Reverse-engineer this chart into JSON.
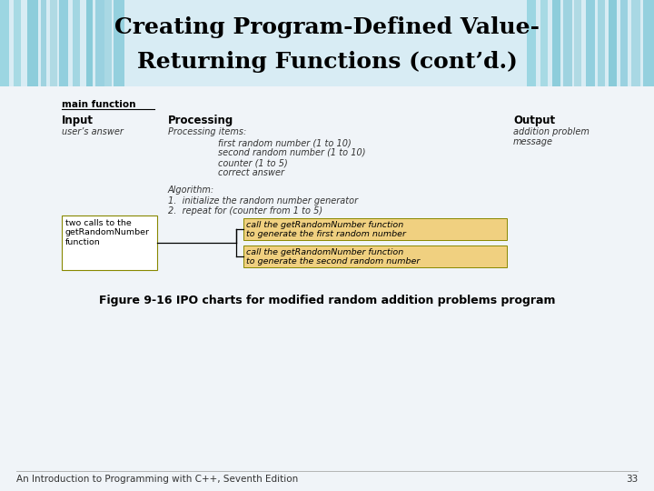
{
  "title_line1": "Creating Program-Defined Value-",
  "title_line2": "Returning Functions (cont’d.)",
  "title_fontsize": 18,
  "title_color": "#000000",
  "background_color": "#f0f4f8",
  "main_function_label": "main function",
  "input_label": "Input",
  "processing_label": "Processing",
  "output_label": "Output",
  "input_text": "user’s answer",
  "output_text1": "addition problem",
  "output_text2": "message",
  "processing_items_header": "Processing items:",
  "processing_items": [
    "first random number (1 to 10)",
    "second random number (1 to 10)",
    "counter (1 to 5)",
    "correct answer"
  ],
  "algorithm_header": "Algorithm:",
  "algorithm_items": [
    "1.  initialize the random number generator",
    "2.  repeat for (counter from 1 to 5)"
  ],
  "box_left_text": "two calls to the\ngetRandomNumber\nfunction",
  "highlight_box1_line1": "call the getRandomNumber function",
  "highlight_box1_line2": "to generate the first random number",
  "highlight_box2_line1": "call the getRandomNumber function",
  "highlight_box2_line2": "to generate the second random number",
  "highlight_color": "#f0d080",
  "box_border_color": "#888800",
  "lbox_border_color": "#888800",
  "figure_caption": "Figure 9-16 IPO charts for modified random addition problems program",
  "footer_text": "An Introduction to Programming with C++, Seventh Edition",
  "footer_page": "33",
  "title_bg_colors": [
    "#c8dce8",
    "#b8d0e0",
    "#d0e4f0",
    "#a8c8dc",
    "#c0d8e8"
  ],
  "bar_colors_left": [
    "#6ab4cc",
    "#88c4d8",
    "#50a8c0",
    "#70bccc",
    "#5cacc4",
    "#78c0d0",
    "#44a4bc",
    "#6ab4cc"
  ],
  "bar_colors_right": [
    "#6ab4cc",
    "#88c4d8",
    "#50a8c0",
    "#70bccc",
    "#5cacc4",
    "#78c0d0",
    "#44a4bc",
    "#6ab4cc"
  ]
}
